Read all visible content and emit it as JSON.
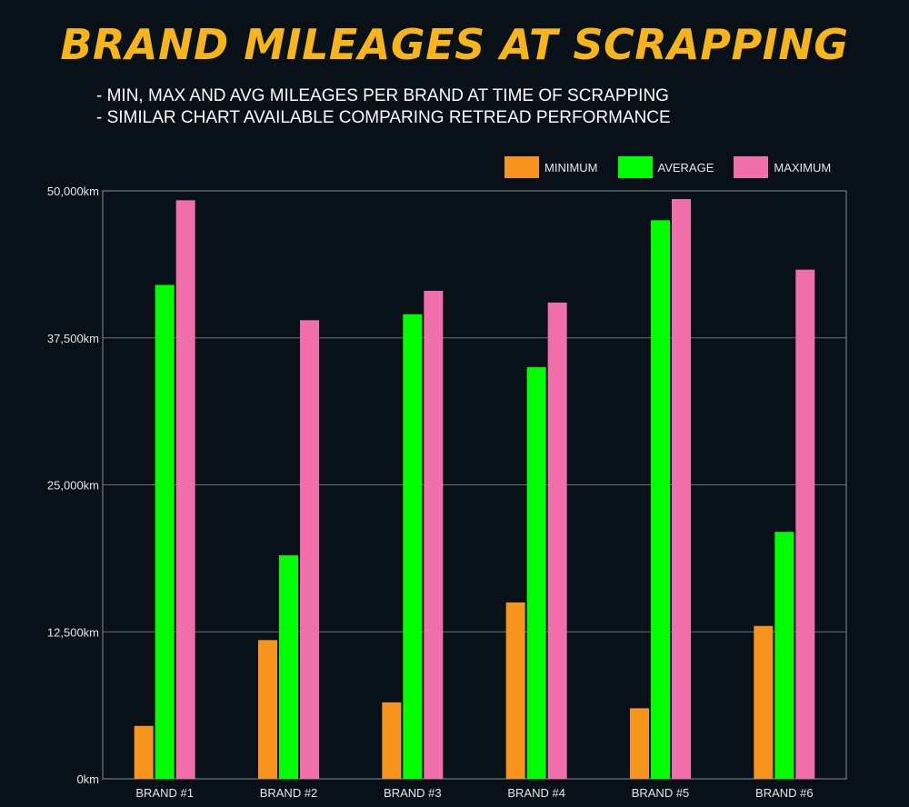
{
  "header": {
    "title": "BRAND MILEAGES AT SCRAPPING",
    "subtitle_lines": [
      "- MIN, MAX AND AVG MILEAGES PER BRAND AT TIME OF SCRAPPING",
      "- SIMILAR CHART AVAILABLE COMPARING RETREAD PERFORMANCE"
    ]
  },
  "colors": {
    "title": "#f7b519",
    "minimum": "#f7941d",
    "average": "#00ff00",
    "maximum": "#f06eaa",
    "background": "#081018",
    "grid": "#6b7075"
  },
  "chart_data": {
    "type": "bar",
    "title": "BRAND MILEAGES AT SCRAPPING",
    "xlabel": "",
    "ylabel": "",
    "categories": [
      "BRAND #1",
      "BRAND #2",
      "BRAND #3",
      "BRAND #4",
      "BRAND #5",
      "BRAND #6"
    ],
    "series": [
      {
        "name": "MINIMUM",
        "values": [
          4500,
          11800,
          6500,
          15000,
          6000,
          13000
        ]
      },
      {
        "name": "AVERAGE",
        "values": [
          42000,
          19000,
          39500,
          35000,
          47500,
          21000
        ]
      },
      {
        "name": "MAXIMUM",
        "values": [
          49200,
          39000,
          41500,
          40500,
          49300,
          43300
        ]
      }
    ],
    "ylim": [
      0,
      50000
    ],
    "yticks": [
      0,
      12500,
      25000,
      37500,
      50000
    ],
    "ytick_labels": [
      "0km",
      "12,500km",
      "25,000km",
      "37,500km",
      "50,000km"
    ],
    "grid": true,
    "legend_position": "top-right"
  }
}
